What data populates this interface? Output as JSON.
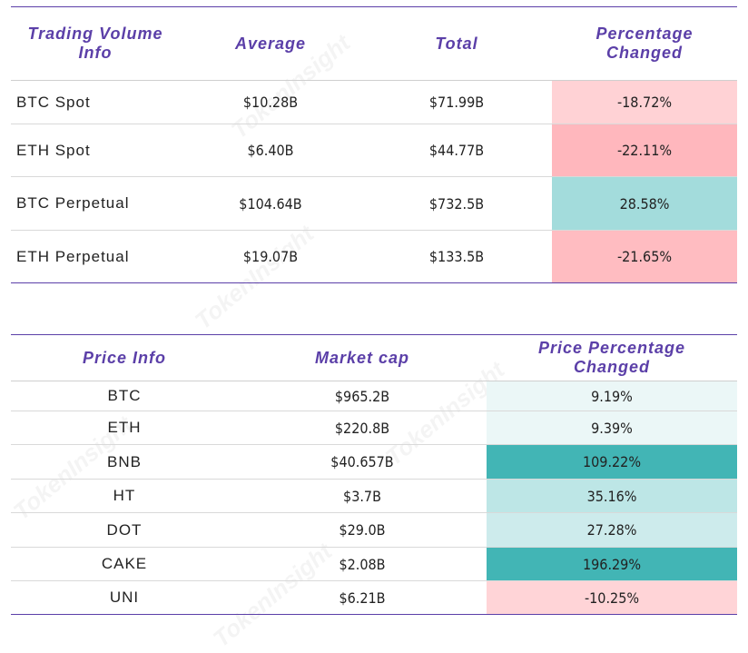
{
  "volume_table": {
    "headers": [
      "Trading Volume Info",
      "Average",
      "Total",
      "Percentage Changed"
    ],
    "header_lines": [
      [
        "Trading Volume",
        "Info"
      ],
      [
        "Average"
      ],
      [
        "Total"
      ],
      [
        "Percentage",
        "Changed"
      ]
    ],
    "rows": [
      {
        "name": "BTC Spot",
        "average": "$10.28B",
        "total": "$71.99B",
        "change": "-18.72%",
        "color": "#ffd2d5"
      },
      {
        "name": "ETH Spot",
        "average": "$6.40B",
        "total": "$44.77B",
        "change": "-22.11%",
        "color": "#ffb7bd"
      },
      {
        "name": "BTC Perpetual",
        "average": "$104.64B",
        "total": "$732.5B",
        "change": "28.58%",
        "color": "#a3dcdc"
      },
      {
        "name": "ETH Perpetual",
        "average": "$19.07B",
        "total": "$133.5B",
        "change": "-21.65%",
        "color": "#ffbcc1"
      }
    ]
  },
  "price_table": {
    "headers": [
      "Price Info",
      "Market cap",
      "Price Percentage Changed"
    ],
    "header_lines": [
      [
        "Price Info"
      ],
      [
        "Market cap"
      ],
      [
        "Price Percentage",
        "Changed"
      ]
    ],
    "rows": [
      {
        "name": "BTC",
        "market_cap": "$965.2B",
        "change": "9.19%",
        "color": "#ebf7f7"
      },
      {
        "name": "ETH",
        "market_cap": "$220.8B",
        "change": "9.39%",
        "color": "#ebf7f7"
      },
      {
        "name": "BNB",
        "market_cap": "$40.657B",
        "change": "109.22%",
        "color": "#42b5b5"
      },
      {
        "name": "HT",
        "market_cap": "$3.7B",
        "change": "35.16%",
        "color": "#bde6e6"
      },
      {
        "name": "DOT",
        "market_cap": "$29.0B",
        "change": "27.28%",
        "color": "#cdebec"
      },
      {
        "name": "CAKE",
        "market_cap": "$2.08B",
        "change": "196.29%",
        "color": "#42b5b5"
      },
      {
        "name": "UNI",
        "market_cap": "$6.21B",
        "change": "-10.25%",
        "color": "#ffd4d7"
      }
    ]
  },
  "watermark": "TokenInsight"
}
